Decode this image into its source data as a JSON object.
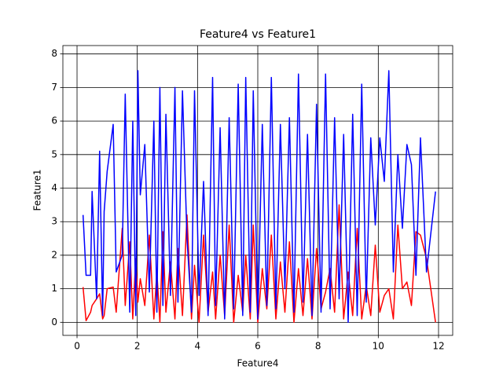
{
  "chart_data": {
    "type": "line",
    "title": "Feature4 vs Feature1",
    "x_label": "Feature4",
    "y_label": "Feature1",
    "x": [
      0.2,
      0.3,
      0.45,
      0.5,
      0.65,
      0.75,
      0.85,
      0.9,
      1.0,
      1.2,
      1.3,
      1.5,
      1.6,
      1.75,
      1.85,
      1.95,
      2.02,
      2.1,
      2.25,
      2.4,
      2.55,
      2.65,
      2.75,
      2.85,
      2.95,
      3.1,
      3.25,
      3.35,
      3.5,
      3.65,
      3.8,
      3.9,
      4.05,
      4.2,
      4.35,
      4.5,
      4.6,
      4.75,
      4.9,
      5.05,
      5.2,
      5.35,
      5.5,
      5.6,
      5.75,
      5.85,
      6.0,
      6.15,
      6.3,
      6.45,
      6.6,
      6.75,
      6.9,
      7.05,
      7.2,
      7.35,
      7.5,
      7.65,
      7.8,
      7.95,
      8.1,
      8.25,
      8.4,
      8.55,
      8.7,
      8.85,
      9.0,
      9.15,
      9.3,
      9.45,
      9.6,
      9.75,
      9.9,
      10.05,
      10.2,
      10.35,
      10.5,
      10.65,
      10.8,
      10.95,
      11.1,
      11.25,
      11.4,
      11.6,
      11.9
    ],
    "series": [
      {
        "color": "#ff0000",
        "values": [
          1.05,
          0.05,
          0.3,
          0.5,
          0.7,
          0.85,
          0.1,
          0.2,
          1.0,
          1.05,
          0.3,
          2.8,
          0.5,
          2.4,
          0.1,
          1.9,
          0.6,
          1.3,
          0.5,
          2.6,
          0.1,
          1.5,
          0.0,
          2.7,
          0.3,
          1.8,
          0.1,
          2.2,
          0.2,
          3.2,
          0.1,
          1.7,
          0.0,
          2.6,
          0.3,
          1.5,
          0.1,
          2.0,
          0.2,
          2.9,
          0.0,
          1.4,
          0.3,
          2.0,
          0.1,
          2.9,
          0.0,
          1.6,
          0.4,
          2.6,
          0.1,
          1.8,
          0.3,
          2.4,
          0.0,
          1.6,
          0.2,
          1.9,
          0.1,
          2.2,
          0.4,
          0.9,
          1.6,
          0.3,
          3.5,
          0.1,
          1.5,
          0.2,
          2.8,
          0.1,
          1.1,
          0.2,
          2.3,
          0.3,
          0.8,
          1.0,
          0.1,
          2.9,
          1.0,
          1.2,
          0.5,
          2.7,
          2.6,
          1.9,
          0.0
        ]
      },
      {
        "color": "#0000ff",
        "values": [
          3.2,
          1.4,
          1.4,
          3.9,
          0.7,
          5.1,
          0.2,
          3.3,
          4.5,
          5.9,
          1.5,
          2.0,
          6.8,
          0.3,
          6.0,
          0.2,
          7.5,
          3.8,
          5.3,
          0.9,
          6.0,
          0.3,
          7.0,
          0.5,
          6.2,
          0.8,
          7.0,
          0.6,
          6.9,
          2.5,
          0.3,
          6.9,
          0.8,
          4.2,
          0.2,
          7.3,
          0.5,
          5.8,
          0.1,
          6.1,
          0.4,
          7.1,
          0.2,
          7.3,
          0.3,
          6.9,
          0.1,
          5.9,
          0.5,
          7.3,
          0.4,
          5.9,
          1.0,
          6.1,
          0.3,
          7.4,
          0.6,
          5.6,
          0.2,
          6.5,
          0.3,
          7.4,
          0.4,
          6.1,
          0.7,
          5.6,
          0.0,
          6.2,
          0.2,
          7.1,
          0.6,
          5.5,
          2.9,
          5.5,
          4.2,
          7.5,
          1.5,
          5.0,
          2.8,
          5.3,
          4.7,
          1.4,
          5.5,
          1.5,
          3.9
        ]
      }
    ],
    "xlim": [
      -0.47,
      12.47
    ],
    "ylim": [
      -0.39,
      8.25
    ],
    "xticks": [
      0,
      2,
      4,
      6,
      8,
      10,
      12
    ],
    "yticks": [
      0,
      1,
      2,
      3,
      4,
      5,
      6,
      7,
      8
    ],
    "grid": true,
    "grid_color": "#000000"
  }
}
